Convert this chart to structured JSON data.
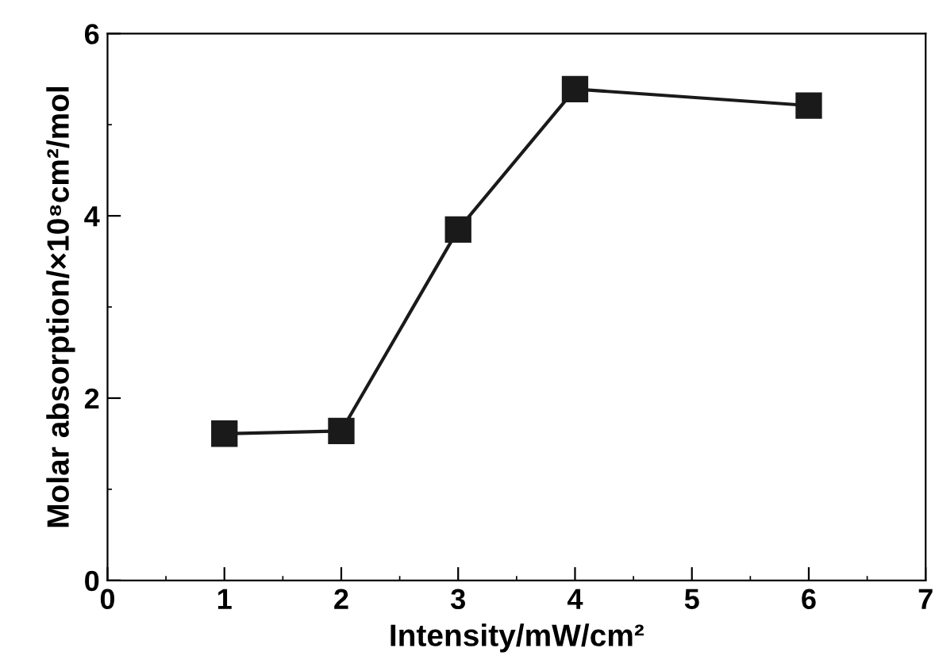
{
  "chart_data": {
    "type": "line",
    "xlabel": "Intensity/mW/cm²",
    "ylabel": "Molar absorption/×10⁸cm²/mol",
    "x": [
      1,
      2,
      3,
      4,
      6
    ],
    "series": [
      {
        "color": "#1a1a1a",
        "values": [
          1.61,
          1.64,
          3.85,
          5.39,
          5.21
        ]
      }
    ],
    "marker": "square",
    "line_style": "solid",
    "grid": false,
    "xlim": [
      0,
      7
    ],
    "xticks": [
      0,
      1,
      2,
      3,
      4,
      5,
      6,
      7
    ],
    "ylim": [
      0,
      6
    ],
    "yticks": [
      0,
      2,
      4,
      6
    ]
  }
}
